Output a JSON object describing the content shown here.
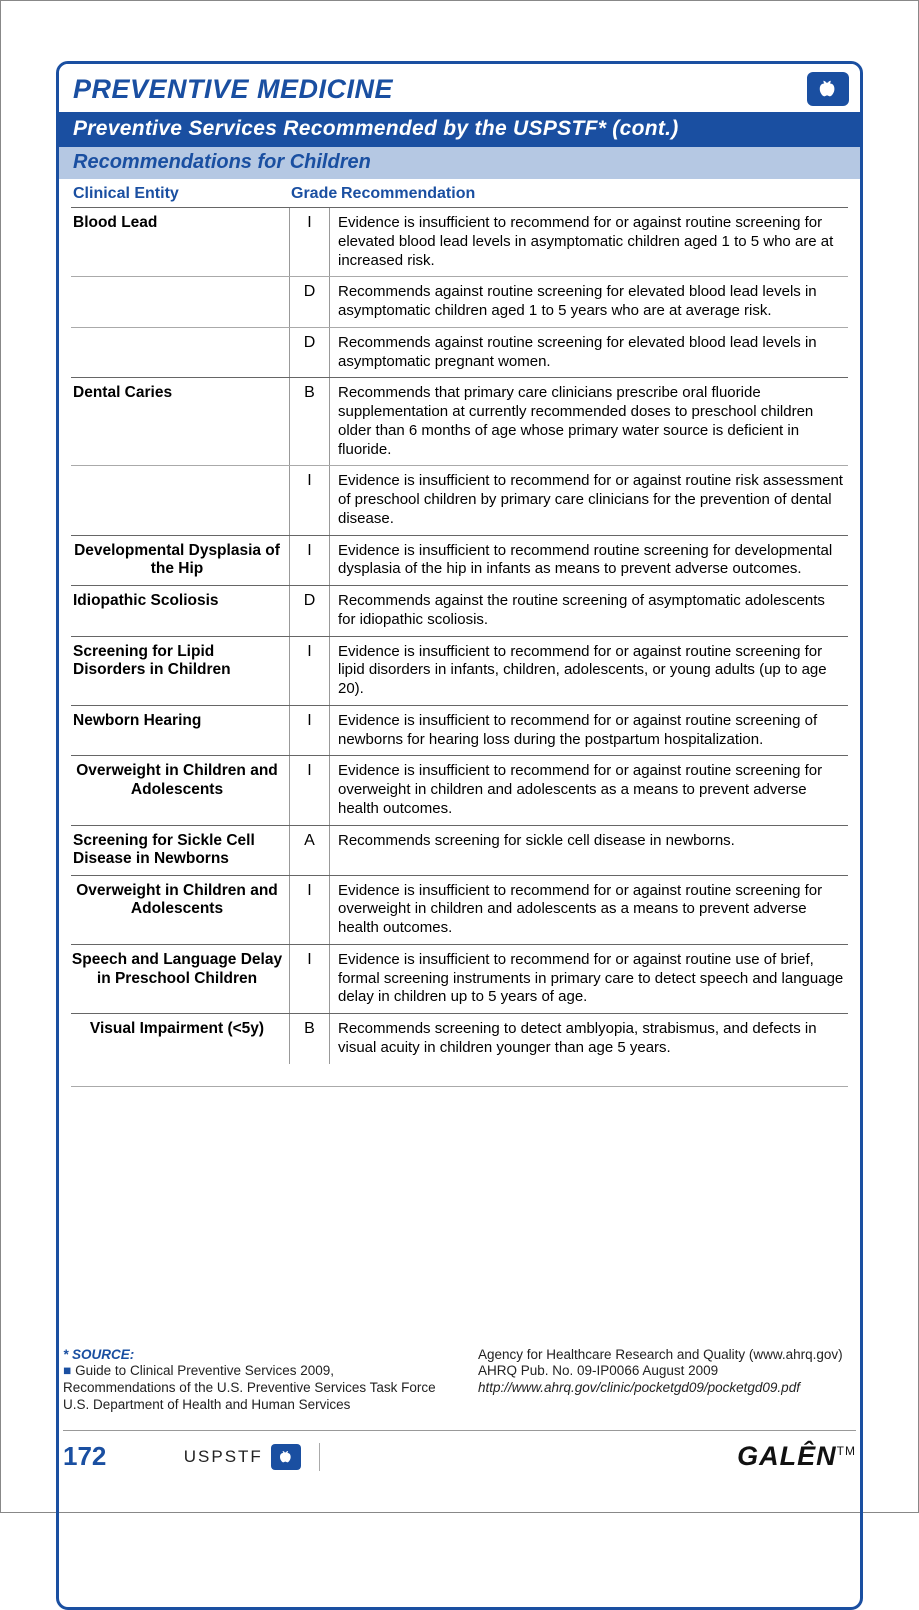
{
  "header": {
    "title": "PREVENTIVE MEDICINE",
    "subtitle": "Preventive Services Recommended by the USPSTF*  (cont.)",
    "section": "Recommendations for Children"
  },
  "columns": {
    "entity": "Clinical Entity",
    "grade": "Grade",
    "recommendation": "Recommendation"
  },
  "rows": [
    {
      "entity": "Blood Lead",
      "grade": "I",
      "rec": "Evidence is insufficient to recommend for or against routine screening for elevated blood lead levels in asymptomatic children aged 1 to 5 who are at increased risk.",
      "first": true
    },
    {
      "entity": "",
      "grade": "D",
      "rec": "Recommends against routine screening for elevated blood lead levels in asymptomatic children aged 1 to 5 years who are at average risk.",
      "sub": true
    },
    {
      "entity": "",
      "grade": "D",
      "rec": "Recommends against routine screening for elevated blood lead levels in asymptomatic pregnant women.",
      "sub": true
    },
    {
      "entity": "Dental Caries",
      "grade": "B",
      "rec": "Recommends that primary care clinicians prescribe oral fluoride supplementation at currently recommended doses to preschool children older than 6 months of age whose primary water source is deficient in fluoride.",
      "first": true
    },
    {
      "entity": "",
      "grade": "I",
      "rec": "Evidence is insufficient to recommend for or against routine risk assessment of preschool children by primary care clinicians for the prevention of dental disease.",
      "sub": true
    },
    {
      "entity": "Developmental Dysplasia of the Hip",
      "grade": "I",
      "rec": "Evidence is insufficient to recommend routine screening for developmental dysplasia of the hip in infants as means to prevent adverse outcomes.",
      "first": true,
      "center": true
    },
    {
      "entity": "Idiopathic Scoliosis",
      "grade": "D",
      "rec": "Recommends against the routine screening of asymptomatic adolescents for idiopathic scoliosis.",
      "first": true
    },
    {
      "entity": "Screening for Lipid Disorders in Children",
      "grade": "I",
      "rec": "Evidence is insufficient to recommend for or against routine screening for lipid disorders in infants, children, adolescents, or young adults (up to age 20).",
      "first": true
    },
    {
      "entity": "Newborn Hearing",
      "grade": "I",
      "rec": "Evidence is insufficient to recommend for or against routine screening of newborns for hearing loss during the postpartum hospitalization.",
      "first": true
    },
    {
      "entity": "Overweight in Children and Adolescents",
      "grade": "I",
      "rec": "Evidence is insufficient to recommend for or against routine screening for overweight in children and adolescents as a means to prevent adverse health outcomes.",
      "first": true,
      "center": true
    },
    {
      "entity": "Screening for Sickle Cell Disease in Newborns",
      "grade": "A",
      "rec": "Recommends screening for sickle cell disease in newborns.",
      "first": true
    },
    {
      "entity": "Overweight in Children and Adolescents",
      "grade": "I",
      "rec": "Evidence is insufficient to recommend for or against routine screening for overweight in children and adolescents as a means to prevent adverse health outcomes.",
      "first": true,
      "center": true
    },
    {
      "entity": "Speech and Language Delay in Preschool Children",
      "grade": "I",
      "rec": "Evidence is insufficient to recommend for or against routine use of brief, formal screening instruments in primary care to detect speech and language delay in children up to 5 years of age.",
      "first": true,
      "center": true
    },
    {
      "entity": "Visual Impairment (<5y)",
      "grade": "B",
      "rec": "Recommends screening to detect amblyopia, strabismus, and defects in visual acuity in children younger than age 5 years.",
      "first": true,
      "center": true
    }
  ],
  "source": {
    "label": "* SOURCE:",
    "left1": "Guide to Clinical Preventive Services 2009,",
    "left2": "Recommendations of the U.S. Preventive Services Task Force",
    "left3": "U.S. Department of Health and Human Services",
    "right1": "Agency for Healthcare Research and Quality (www.ahrq.gov)",
    "right2": "AHRQ Pub. No. 09-IP0066  August 2009",
    "right3": "http://www.ahrq.gov/clinic/pocketgd09/pocketgd09.pdf"
  },
  "footer": {
    "page": "172",
    "mid": "USPSTF",
    "brand": "GALÊN",
    "tm": "TM"
  }
}
